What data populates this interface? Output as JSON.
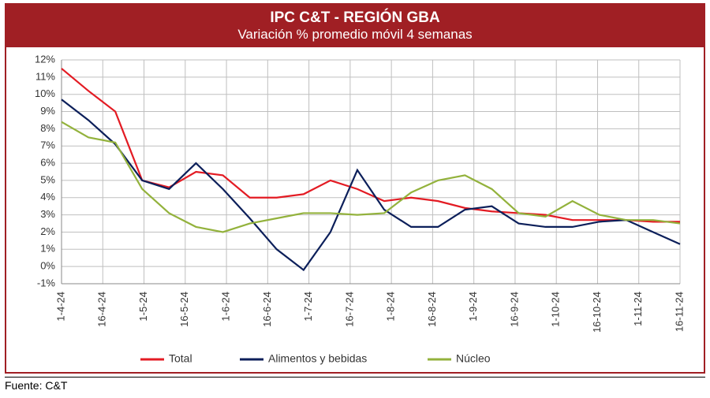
{
  "header": {
    "title": "IPC C&T - REGIÓN GBA",
    "subtitle": "Variación % promedio móvil 4 semanas",
    "bg_color": "#a01f24",
    "text_color": "#ffffff",
    "title_fontsize": 19,
    "subtitle_fontsize": 17
  },
  "chart": {
    "type": "line",
    "border_color": "#a01f24",
    "background_color": "#ffffff",
    "grid_color": "#bfbfbf",
    "axis_label_fontsize": 13,
    "x_labels": [
      "1-4-24",
      "16-4-24",
      "1-5-24",
      "16-5-24",
      "1-6-24",
      "16-6-24",
      "1-7-24",
      "16-7-24",
      "1-8-24",
      "16-8-24",
      "1-9-24",
      "16-9-24",
      "1-10-24",
      "16-10-24",
      "1-11-24",
      "16-11-24"
    ],
    "y_min": -1,
    "y_max": 12,
    "y_tick_step": 1,
    "y_suffix": "%",
    "line_width": 2.2,
    "series": [
      {
        "name": "Total",
        "color": "#e31b23",
        "values": [
          11.5,
          10.2,
          9.0,
          5.0,
          4.6,
          5.5,
          5.3,
          4.0,
          4.0,
          4.2,
          5.0,
          4.5,
          3.8,
          4.0,
          3.8,
          3.4,
          3.2,
          3.1,
          3.0,
          2.7,
          2.7,
          2.7,
          2.6,
          2.6
        ]
      },
      {
        "name": "Alimentos y bebidas",
        "color": "#0c1f5a",
        "values": [
          9.7,
          8.5,
          7.1,
          5.0,
          4.5,
          6.0,
          4.5,
          2.8,
          1.0,
          -0.2,
          2.0,
          5.6,
          3.3,
          2.3,
          2.3,
          3.3,
          3.5,
          2.5,
          2.3,
          2.3,
          2.6,
          2.7,
          2.0,
          1.3
        ]
      },
      {
        "name": "Núcleo",
        "color": "#93b23c",
        "values": [
          8.4,
          7.5,
          7.2,
          4.5,
          3.1,
          2.3,
          2.0,
          2.5,
          2.8,
          3.1,
          3.1,
          3.0,
          3.1,
          4.3,
          5.0,
          5.3,
          4.5,
          3.1,
          2.9,
          3.8,
          3.0,
          2.7,
          2.7,
          2.5
        ]
      }
    ],
    "legend": {
      "items": [
        "Total",
        "Alimentos y bebidas",
        "Núcleo"
      ],
      "fontsize": 14
    }
  },
  "source_label": "Fuente: C&T"
}
